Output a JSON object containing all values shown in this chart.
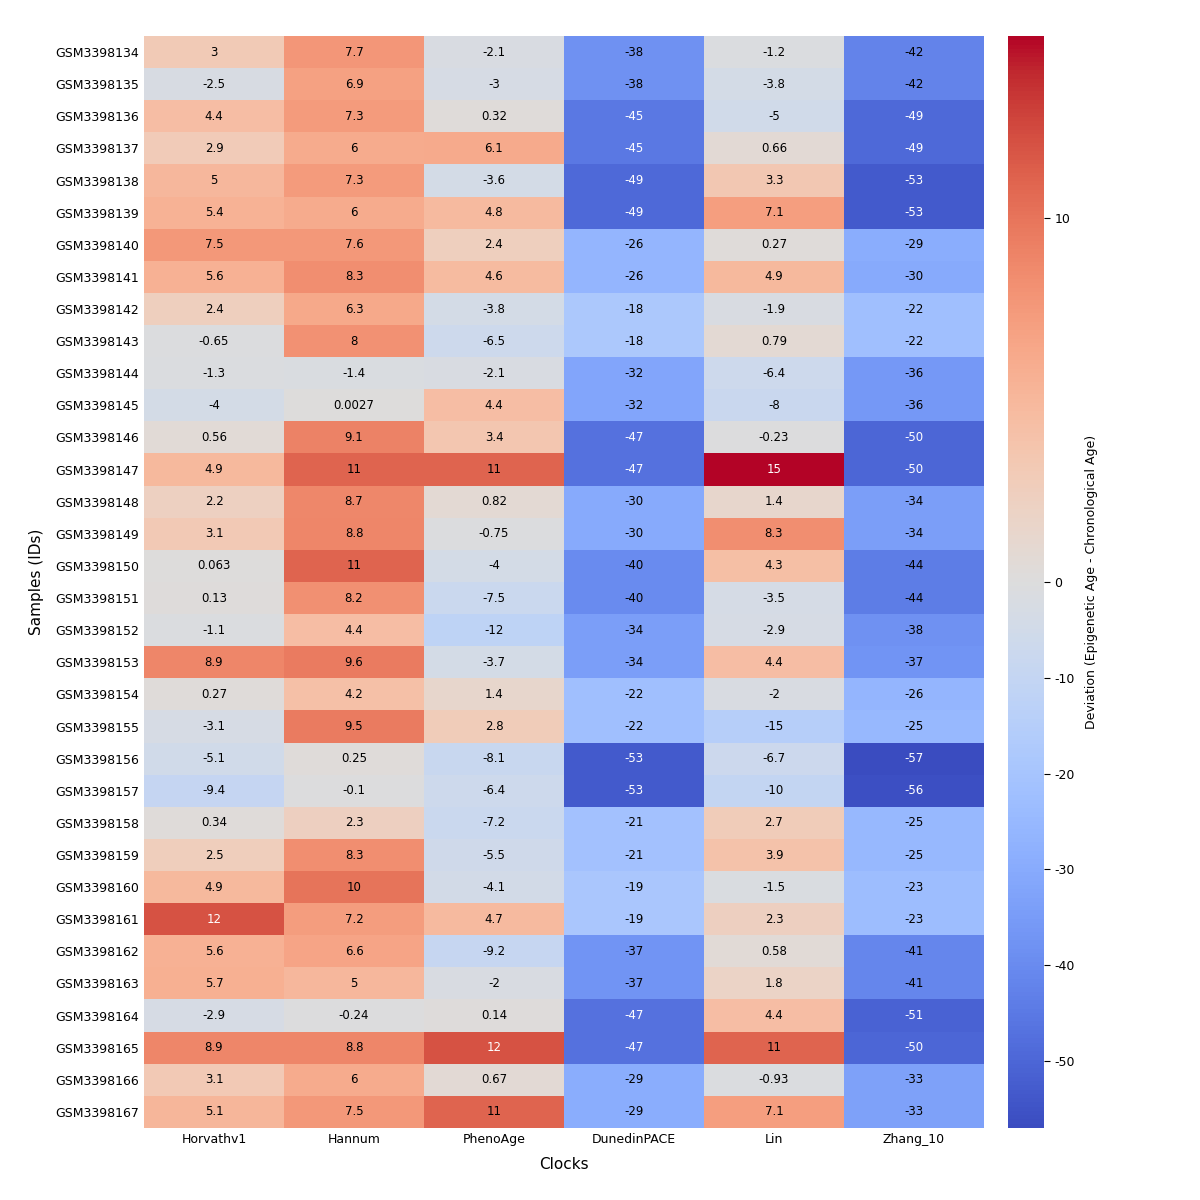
{
  "samples": [
    "GSM3398134",
    "GSM3398135",
    "GSM3398136",
    "GSM3398137",
    "GSM3398138",
    "GSM3398139",
    "GSM3398140",
    "GSM3398141",
    "GSM3398142",
    "GSM3398143",
    "GSM3398144",
    "GSM3398145",
    "GSM3398146",
    "GSM3398147",
    "GSM3398148",
    "GSM3398149",
    "GSM3398150",
    "GSM3398151",
    "GSM3398152",
    "GSM3398153",
    "GSM3398154",
    "GSM3398155",
    "GSM3398156",
    "GSM3398157",
    "GSM3398158",
    "GSM3398159",
    "GSM3398160",
    "GSM3398161",
    "GSM3398162",
    "GSM3398163",
    "GSM3398164",
    "GSM3398165",
    "GSM3398166",
    "GSM3398167"
  ],
  "clocks": [
    "Horvathv1",
    "Hannum",
    "PhenoAge",
    "DunedinPACE",
    "Lin",
    "Zhang_10"
  ],
  "data": [
    [
      3,
      7.7,
      -2.1,
      -38,
      -1.2,
      -42
    ],
    [
      -2.5,
      6.9,
      -3,
      -38,
      -3.8,
      -42
    ],
    [
      4.4,
      7.3,
      0.32,
      -45,
      -5,
      -49
    ],
    [
      2.9,
      6,
      6.1,
      -45,
      0.66,
      -49
    ],
    [
      5,
      7.3,
      -3.6,
      -49,
      3.3,
      -53
    ],
    [
      5.4,
      6,
      4.8,
      -49,
      7.1,
      -53
    ],
    [
      7.5,
      7.6,
      2.4,
      -26,
      0.27,
      -29
    ],
    [
      5.6,
      8.3,
      4.6,
      -26,
      4.9,
      -30
    ],
    [
      2.4,
      6.3,
      -3.8,
      -18,
      -1.9,
      -22
    ],
    [
      -0.65,
      8,
      -6.5,
      -18,
      0.79,
      -22
    ],
    [
      -1.3,
      -1.4,
      -2.1,
      -32,
      -6.4,
      -36
    ],
    [
      -4,
      0.0027,
      4.4,
      -32,
      -8,
      -36
    ],
    [
      0.56,
      9.1,
      3.4,
      -47,
      -0.23,
      -50
    ],
    [
      4.9,
      11,
      11,
      -47,
      15,
      -50
    ],
    [
      2.2,
      8.7,
      0.82,
      -30,
      1.4,
      -34
    ],
    [
      3.1,
      8.8,
      -0.75,
      -30,
      8.3,
      -34
    ],
    [
      0.063,
      11,
      -4,
      -40,
      4.3,
      -44
    ],
    [
      0.13,
      8.2,
      -7.5,
      -40,
      -3.5,
      -44
    ],
    [
      -1.1,
      4.4,
      -12,
      -34,
      -2.9,
      -38
    ],
    [
      8.9,
      9.6,
      -3.7,
      -34,
      4.4,
      -37
    ],
    [
      0.27,
      4.2,
      1.4,
      -22,
      -2,
      -26
    ],
    [
      -3.1,
      9.5,
      2.8,
      -22,
      -15,
      -25
    ],
    [
      -5.1,
      0.25,
      -8.1,
      -53,
      -6.7,
      -57
    ],
    [
      -9.4,
      -0.1,
      -6.4,
      -53,
      -10,
      -56
    ],
    [
      0.34,
      2.3,
      -7.2,
      -21,
      2.7,
      -25
    ],
    [
      2.5,
      8.3,
      -5.5,
      -21,
      3.9,
      -25
    ],
    [
      4.9,
      10,
      -4.1,
      -19,
      -1.5,
      -23
    ],
    [
      12,
      7.2,
      4.7,
      -19,
      2.3,
      -23
    ],
    [
      5.6,
      6.6,
      -9.2,
      -37,
      0.58,
      -41
    ],
    [
      5.7,
      5,
      -2,
      -37,
      1.8,
      -41
    ],
    [
      -2.9,
      -0.24,
      0.14,
      -47,
      4.4,
      -51
    ],
    [
      8.9,
      8.8,
      12,
      -47,
      11,
      -50
    ],
    [
      3.1,
      6,
      0.67,
      -29,
      -0.93,
      -33
    ],
    [
      5.1,
      7.5,
      11,
      -29,
      7.1,
      -33
    ]
  ],
  "vmin": -57,
  "vmax": 15,
  "xlabel": "Clocks",
  "ylabel": "Samples (IDs)",
  "colorbar_label": "Deviation (Epigenetic Age - Chronological Age)",
  "colorbar_ticks": [
    10,
    0,
    -10,
    -20,
    -30,
    -40,
    -50
  ],
  "tick_fontsize": 9,
  "annot_fontsize": 8.5,
  "label_fontsize": 11,
  "colorbar_fontsize": 9
}
